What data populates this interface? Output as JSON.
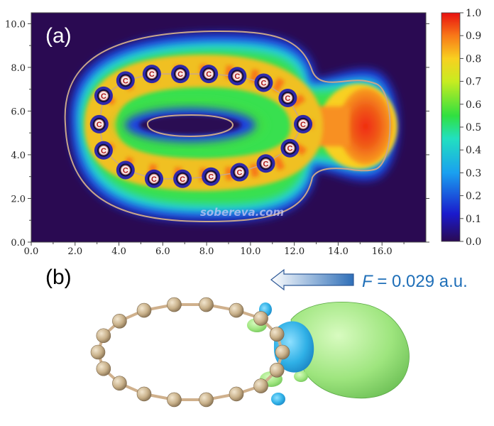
{
  "panel_a": {
    "label": "(a)",
    "x_ticks": [
      "0.0",
      "2.0",
      "4.0",
      "6.0",
      "8.0",
      "10.0",
      "12.0",
      "14.0",
      "16.0"
    ],
    "y_ticks": [
      "0.0",
      "2.0",
      "4.0",
      "6.0",
      "8.0",
      "10.0"
    ],
    "xlim": [
      0,
      18
    ],
    "ylim": [
      0,
      10.5
    ],
    "colorbar_ticks": [
      "1.0",
      "0.9",
      "0.8",
      "0.7",
      "0.6",
      "0.5",
      "0.4",
      "0.3",
      "0.2",
      "0.1",
      "0.0"
    ],
    "atom_label": "C",
    "watermark": "sobereva.com"
  },
  "panel_b": {
    "label": "(b)",
    "field_symbol": "F",
    "field_value": " = 0.029 a.u."
  },
  "colors": {
    "background": "#2a0a52",
    "contour": "#c9a68a",
    "ring_bond": "#cfb08c",
    "atom": "#c8b089",
    "isosurface_green": "#9ee57e",
    "isosurface_blue": "#2fb0e6",
    "arrow_text": "#1f6fb8"
  },
  "chart_data": {
    "type": "heatmap",
    "x_ticks": [
      0,
      2,
      4,
      6,
      8,
      10,
      12,
      14,
      16
    ],
    "y_ticks": [
      0,
      2,
      4,
      6,
      8,
      10
    ],
    "xlim": [
      0,
      18
    ],
    "ylim": [
      0,
      10.5
    ],
    "colorbar_range": [
      0.0,
      1.0
    ],
    "colorbar_ticks": [
      1.0,
      0.9,
      0.8,
      0.7,
      0.6,
      0.5,
      0.4,
      0.3,
      0.2,
      0.1,
      0.0
    ],
    "atoms": [
      {
        "x": 3.1,
        "y": 5.4
      },
      {
        "x": 3.3,
        "y": 6.7
      },
      {
        "x": 4.3,
        "y": 7.4
      },
      {
        "x": 5.5,
        "y": 7.7
      },
      {
        "x": 6.8,
        "y": 7.7
      },
      {
        "x": 8.1,
        "y": 7.7
      },
      {
        "x": 9.4,
        "y": 7.6
      },
      {
        "x": 10.6,
        "y": 7.3
      },
      {
        "x": 11.7,
        "y": 6.6
      },
      {
        "x": 12.4,
        "y": 5.4
      },
      {
        "x": 11.8,
        "y": 4.3
      },
      {
        "x": 10.7,
        "y": 3.6
      },
      {
        "x": 9.5,
        "y": 3.2
      },
      {
        "x": 8.2,
        "y": 3.0
      },
      {
        "x": 6.9,
        "y": 2.9
      },
      {
        "x": 5.6,
        "y": 2.9
      },
      {
        "x": 4.3,
        "y": 3.3
      },
      {
        "x": 3.3,
        "y": 4.2
      }
    ]
  }
}
